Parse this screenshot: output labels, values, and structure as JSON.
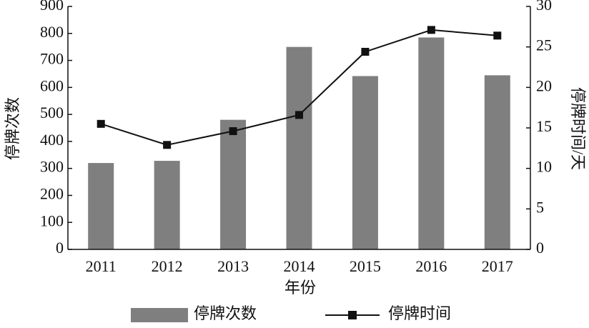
{
  "chart_data": {
    "type": "bar",
    "categories": [
      "2011",
      "2012",
      "2013",
      "2014",
      "2015",
      "2016",
      "2017"
    ],
    "x_label": "年份",
    "y_label": "停牌次数",
    "y2_label": "停牌时间/天",
    "ylim": [
      0,
      900
    ],
    "yticks": [
      0,
      100,
      200,
      300,
      400,
      500,
      600,
      700,
      800,
      900
    ],
    "y2lim": [
      0,
      30
    ],
    "y2ticks": [
      0,
      5,
      10,
      15,
      20,
      25,
      30
    ],
    "series": [
      {
        "name": "停牌次数",
        "type": "bar",
        "color": "#7f7f7f",
        "values": [
          320,
          328,
          480,
          750,
          642,
          785,
          645
        ]
      },
      {
        "name": "停牌时间",
        "type": "line",
        "axis": "y2",
        "color": "#111111",
        "values": [
          15.5,
          12.9,
          14.6,
          16.6,
          24.4,
          27.1,
          26.4
        ]
      }
    ]
  }
}
